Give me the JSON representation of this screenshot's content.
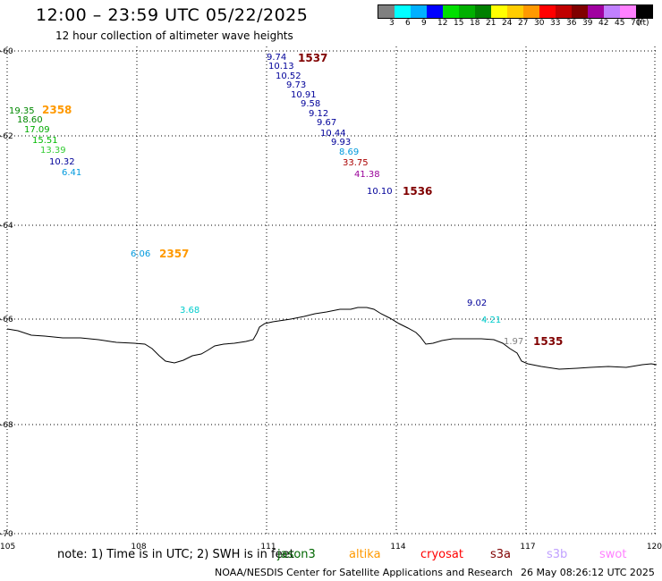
{
  "title": "12:00 – 23:59 UTC 05/22/2025",
  "subtitle": "12 hour collection of altimeter wave heights",
  "legend": {
    "colors": [
      "#808080",
      "#00ffff",
      "#00b0ff",
      "#0000ff",
      "#00e000",
      "#00b000",
      "#008000",
      "#ffff00",
      "#ffcc00",
      "#ff9900",
      "#ff0000",
      "#c00000",
      "#800000",
      "#a000a0",
      "#c080ff",
      "#ff80ff",
      "#000000"
    ],
    "labels": [
      "3",
      "6",
      "9",
      "12",
      "15",
      "18",
      "21",
      "24",
      "27",
      "30",
      "33",
      "36",
      "39",
      "42",
      "45",
      "70",
      "(ft)"
    ]
  },
  "axes": {
    "x_ticks": [
      "105",
      "108",
      "111",
      "114",
      "117",
      "120"
    ],
    "y_ticks": [
      "-60",
      "-62",
      "-64",
      "-66",
      "-68",
      "-70"
    ]
  },
  "measurements": [
    {
      "text": "9.74",
      "color": "#000099"
    },
    {
      "text": "10.13",
      "color": "#000099"
    },
    {
      "text": "10.52",
      "color": "#000099"
    },
    {
      "text": "9.73",
      "color": "#000099"
    },
    {
      "text": "10.91",
      "color": "#000099"
    },
    {
      "text": "9.58",
      "color": "#000099"
    },
    {
      "text": "9.12",
      "color": "#000099"
    },
    {
      "text": "9.67",
      "color": "#000099"
    },
    {
      "text": "10.44",
      "color": "#000099"
    },
    {
      "text": "9.93",
      "color": "#000099"
    },
    {
      "text": "8.69",
      "color": "#0099dd"
    },
    {
      "text": "33.75",
      "color": "#aa0000"
    },
    {
      "text": "41.38",
      "color": "#990099"
    },
    {
      "text": "10.10",
      "color": "#000099"
    },
    {
      "text": "19.35",
      "color": "#008800"
    },
    {
      "text": "18.60",
      "color": "#008800"
    },
    {
      "text": "17.09",
      "color": "#00aa00"
    },
    {
      "text": "15.51",
      "color": "#00bb00"
    },
    {
      "text": "13.39",
      "color": "#33cc33"
    },
    {
      "text": "10.32",
      "color": "#000099"
    },
    {
      "text": "6.41",
      "color": "#0099dd"
    },
    {
      "text": "6.06",
      "color": "#0099dd"
    },
    {
      "text": "3.68",
      "color": "#00cccc"
    },
    {
      "text": "9.02",
      "color": "#000099"
    },
    {
      "text": "4.21",
      "color": "#00cccc"
    },
    {
      "text": "1.97",
      "color": "#808080"
    }
  ],
  "pass_labels": [
    {
      "text": "1537",
      "color": "#800000"
    },
    {
      "text": "2358",
      "color": "#ff9900"
    },
    {
      "text": "1536",
      "color": "#800000"
    },
    {
      "text": "2357",
      "color": "#ff9900"
    },
    {
      "text": "1535",
      "color": "#800000"
    }
  ],
  "note": "note:  1) Time is in UTC;  2) SWH is in feet",
  "satellites": [
    {
      "name": "jason3",
      "color": "#006600"
    },
    {
      "name": "altika",
      "color": "#ff9900"
    },
    {
      "name": "cryosat",
      "color": "#ff0000"
    },
    {
      "name": "s3a",
      "color": "#800000"
    },
    {
      "name": "s3b",
      "color": "#c0a0ff"
    },
    {
      "name": "swot",
      "color": "#ff80ff"
    }
  ],
  "footer_left": "NOAA/NESDIS Center for Satellite Applications and Research",
  "footer_right": "26 May 08:26:12 UTC 2025"
}
